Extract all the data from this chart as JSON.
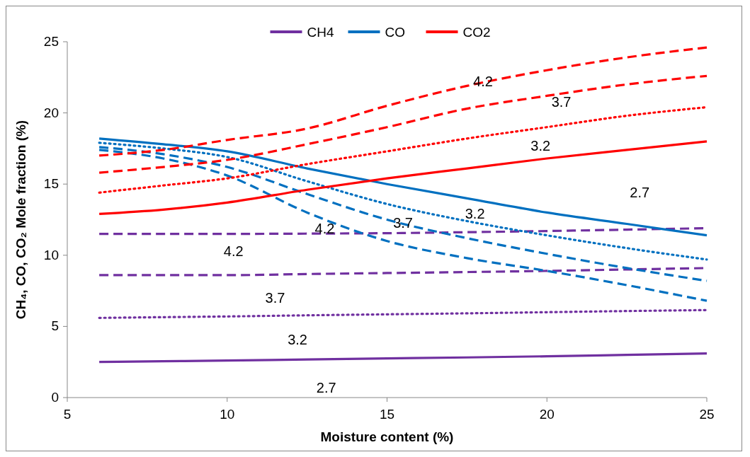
{
  "chart_data": {
    "type": "line",
    "xlabel": "Moisture content (%)",
    "ylabel": "CH₄, CO, CO₂ Mole fraction (%)",
    "x": [
      6,
      8,
      10,
      12.5,
      15,
      17.5,
      20,
      22.5,
      25
    ],
    "xlim": [
      5,
      25
    ],
    "xticks": [
      5,
      10,
      15,
      20,
      25
    ],
    "ylim": [
      0,
      25
    ],
    "yticks": [
      0,
      5,
      10,
      15,
      20,
      25
    ],
    "grid": false,
    "legend": "top",
    "marker": "none",
    "series": [
      {
        "name": "CH4",
        "color": "#7030a0",
        "line_style": "solid",
        "values": [
          2.5,
          2.55,
          2.6,
          2.68,
          2.75,
          2.82,
          2.9,
          3.0,
          3.1
        ]
      },
      {
        "color": "#7030a0",
        "line_style": "dotted",
        "values": [
          5.6,
          5.65,
          5.7,
          5.78,
          5.85,
          5.92,
          6.0,
          6.08,
          6.15
        ]
      },
      {
        "color": "#7030a0",
        "line_style": "dashed",
        "values": [
          8.6,
          8.6,
          8.6,
          8.68,
          8.75,
          8.82,
          8.9,
          9.0,
          9.1
        ]
      },
      {
        "color": "#7030a0",
        "line_style": "dashed",
        "values": [
          11.5,
          11.5,
          11.5,
          11.52,
          11.55,
          11.62,
          11.7,
          11.8,
          11.9
        ]
      },
      {
        "name": "CO",
        "color": "#0070c0",
        "line_style": "solid",
        "values": [
          18.2,
          17.8,
          17.3,
          16.1,
          15.0,
          14.0,
          13.0,
          12.2,
          11.4
        ]
      },
      {
        "color": "#0070c0",
        "line_style": "dotted",
        "values": [
          17.9,
          17.5,
          16.9,
          15.2,
          13.6,
          12.4,
          11.4,
          10.5,
          9.7
        ]
      },
      {
        "color": "#0070c0",
        "line_style": "dashed",
        "values": [
          17.6,
          17.1,
          16.2,
          14.3,
          12.5,
          11.2,
          10.1,
          9.1,
          8.2
        ]
      },
      {
        "color": "#0070c0",
        "line_style": "dashed",
        "values": [
          17.4,
          16.8,
          15.6,
          13.0,
          11.0,
          9.8,
          8.9,
          7.9,
          6.8
        ]
      },
      {
        "name": "CO2",
        "color": "#ff0000",
        "line_style": "solid",
        "values": [
          12.9,
          13.2,
          13.7,
          14.6,
          15.4,
          16.1,
          16.8,
          17.4,
          18.0
        ]
      },
      {
        "color": "#ff0000",
        "line_style": "dotted",
        "values": [
          14.4,
          14.9,
          15.4,
          16.4,
          17.3,
          18.2,
          19.0,
          19.8,
          20.4
        ]
      },
      {
        "color": "#ff0000",
        "line_style": "dashed",
        "values": [
          15.8,
          16.2,
          16.7,
          17.8,
          19.0,
          20.3,
          21.2,
          22.0,
          22.6
        ]
      },
      {
        "color": "#ff0000",
        "line_style": "dashed",
        "values": [
          17.0,
          17.4,
          18.1,
          18.9,
          20.5,
          21.9,
          23.0,
          23.9,
          24.6
        ]
      }
    ],
    "annotations": [
      "4.2",
      "3.7",
      "3.2",
      "2.7",
      "4.2",
      "3.7",
      "3.2",
      "4.2",
      "3.7",
      "3.2",
      "2.7"
    ]
  }
}
